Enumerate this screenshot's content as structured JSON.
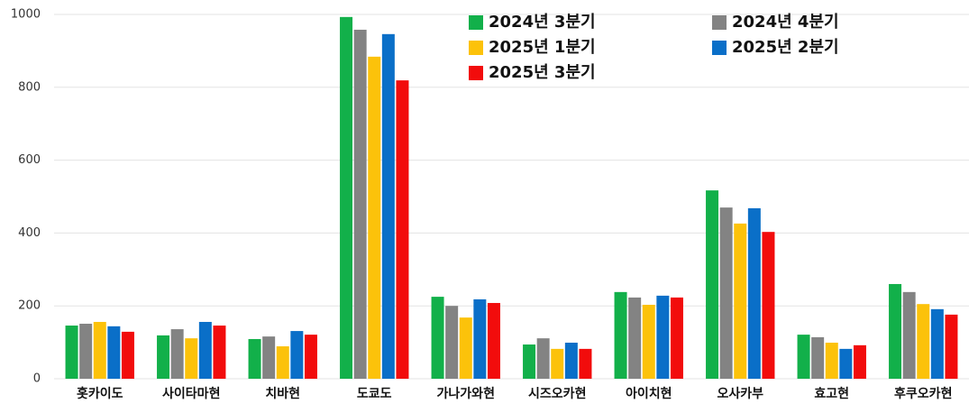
{
  "chart_data": {
    "type": "bar",
    "categories": [
      "홋카이도",
      "사이타마현",
      "치바현",
      "도쿄도",
      "가나가와현",
      "시즈오카현",
      "아이치현",
      "오사카부",
      "효고현",
      "후쿠오카현"
    ],
    "series": [
      {
        "name": "2024년 3분기",
        "color": "#12b04a",
        "values": [
          146,
          119,
          109,
          993,
          225,
          94,
          238,
          517,
          121,
          260
        ]
      },
      {
        "name": "2024년 4분기",
        "color": "#838383",
        "values": [
          151,
          136,
          116,
          958,
          200,
          111,
          223,
          470,
          114,
          238
        ]
      },
      {
        "name": "2025년 1분기",
        "color": "#fcc20a",
        "values": [
          156,
          111,
          89,
          884,
          168,
          82,
          203,
          426,
          99,
          205
        ]
      },
      {
        "name": "2025년 2분기",
        "color": "#0a6fc8",
        "values": [
          144,
          156,
          131,
          946,
          218,
          99,
          228,
          468,
          82,
          191
        ]
      },
      {
        "name": "2025년 3분기",
        "color": "#f20c0c",
        "values": [
          129,
          146,
          121,
          819,
          208,
          82,
          223,
          403,
          92,
          176
        ]
      }
    ],
    "ylim": [
      0,
      1000
    ],
    "yticks": [
      0,
      200,
      400,
      600,
      800,
      1000
    ],
    "grid": true,
    "legend": "top-right"
  }
}
